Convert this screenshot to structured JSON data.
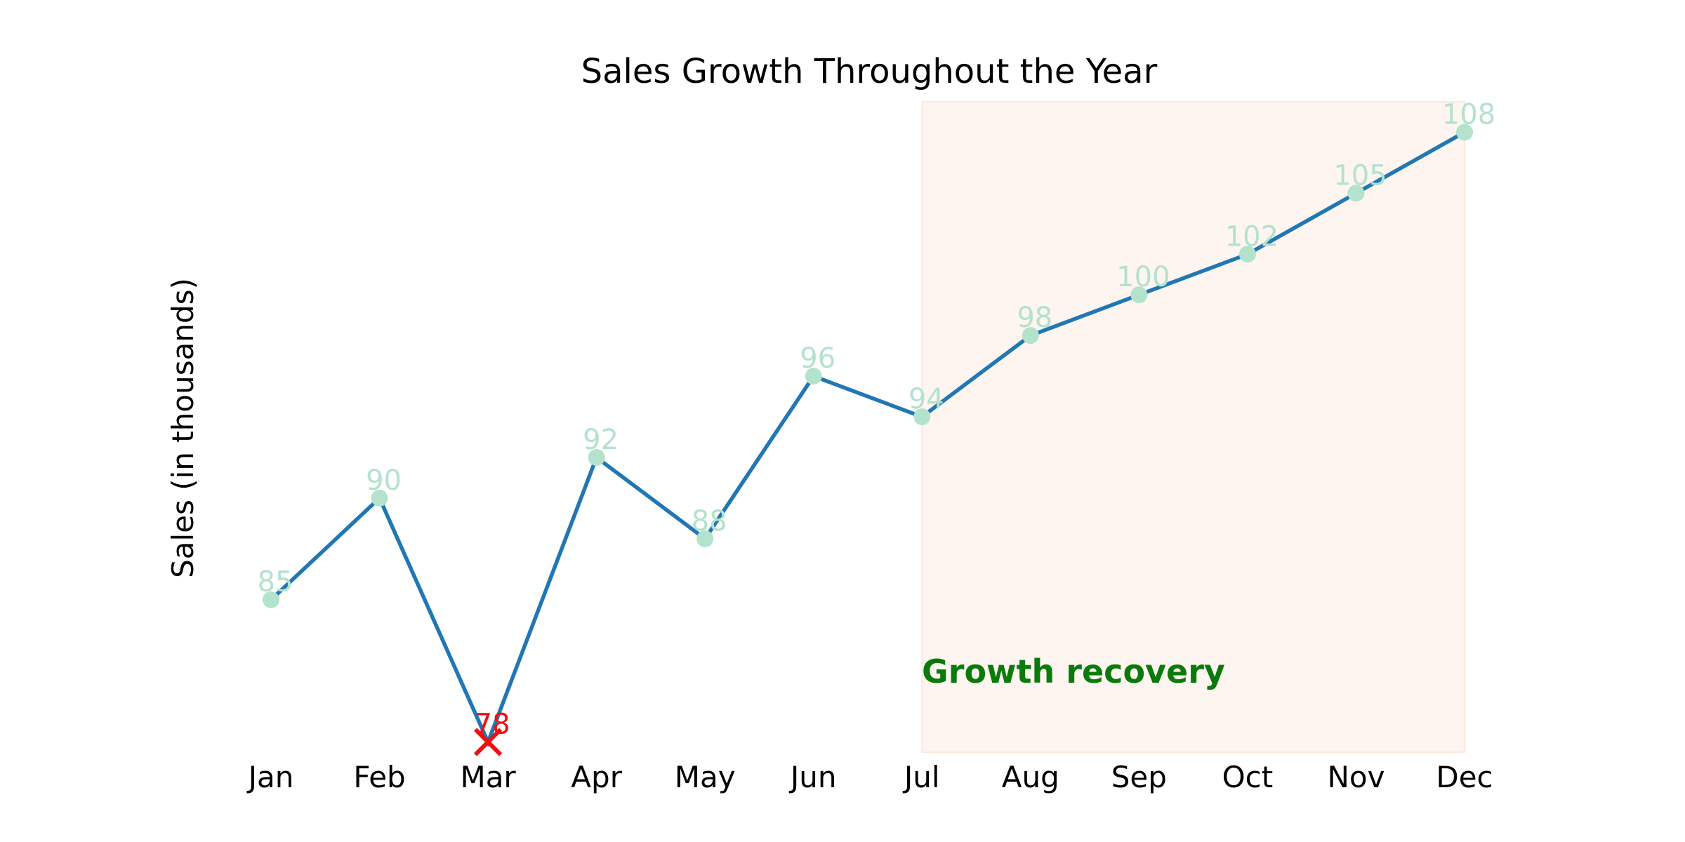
{
  "chart_data": {
    "type": "line",
    "title": "Sales Growth Throughout the Year",
    "xlabel": "",
    "ylabel": "Sales (in thousands)",
    "categories": [
      "Jan",
      "Feb",
      "Mar",
      "Apr",
      "May",
      "Jun",
      "Jul",
      "Aug",
      "Sep",
      "Oct",
      "Nov",
      "Dec"
    ],
    "series": [
      {
        "values": [
          85,
          90,
          78,
          92,
          88,
          96,
          94,
          98,
          100,
          102,
          105,
          108
        ]
      }
    ],
    "ylim": [
      77.5,
      109.5
    ],
    "grid": false,
    "y_axis_visible": false,
    "highlight": {
      "from": "Jul",
      "to": "Dec",
      "label": "Growth recovery"
    },
    "outlier": {
      "category": "Mar",
      "value": 78,
      "marker": "x"
    },
    "colors": {
      "line": "#2177b4",
      "marker": "#b3e2cd",
      "data_label": "#b3e2cd",
      "outlier": "#ee1111",
      "highlight_fill": "#fef5f0",
      "annotation": "#0a7a0a"
    }
  }
}
